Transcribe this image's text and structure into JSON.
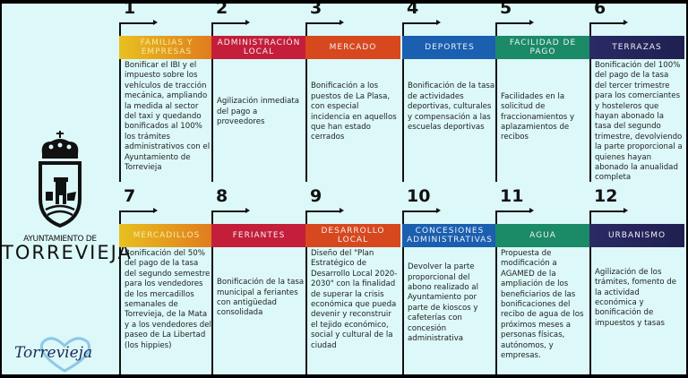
{
  "logo": {
    "subtitle": "AYUNTAMIENTO DE",
    "title": "TORREVIEJA"
  },
  "brand": {
    "text": "Torrevieja"
  },
  "items": [
    {
      "number": "1",
      "title": "FAMILIAS Y EMPRESAS",
      "color": "#e0a020",
      "text": "Bonificar el IBI y el impuesto sobre los vehículos de tracción mecánica, ampliando la medida al sector del taxi y quedando bonificados al 100% los trámites administrativos con el Ayuntamiento de Torrevieja"
    },
    {
      "number": "2",
      "title": "ADMINISTRACIÓN LOCAL",
      "color": "#c41e3a",
      "text": "Agilización inmediata del pago a proveedores"
    },
    {
      "number": "3",
      "title": "MERCADO",
      "color": "#d8481e",
      "text": "Bonificación a los puestos de La Plasa, con especial incidencia en aquellos que han estado cerrados"
    },
    {
      "number": "4",
      "title": "DEPORTES",
      "color": "#1a5fb0",
      "text": "Bonificación de la tasa de actividades deportivas, culturales y compensación a las escuelas deportivas"
    },
    {
      "number": "5",
      "title": "FACILIDAD DE PAGO",
      "color": "#1b8a66",
      "text": "Facilidades en la solicitud de fraccionamientos y aplazamientos de recibos"
    },
    {
      "number": "6",
      "title": "TERRAZAS",
      "color": "#2b2a66",
      "text": "Bonificación del 100% del pago de la tasa del tercer trimestre para los comerciantes y hosteleros que hayan abonado la tasa del segundo trimestre, devolviendo la parte proporcional a quienes hayan abonado la anualidad completa"
    },
    {
      "number": "7",
      "title": "MERCADILLOS",
      "color": "#e0a020",
      "text": "Bonificación del 50% del pago de la tasa del segundo semestre para los vendedores de los mercadillos semanales de Torrevieja, de la Mata y a los vendedores del paseo de La Libertad (los hippies)"
    },
    {
      "number": "8",
      "title": "FERIANTES",
      "color": "#c41e3a",
      "text": "Bonificación de la tasa municipal a feriantes con antigüedad consolidada"
    },
    {
      "number": "9",
      "title": "DESARROLLO LOCAL",
      "color": "#d8481e",
      "text": "Diseño del \"Plan Estratégico de Desarrollo Local 2020-2030\" con la finalidad de superar la crisis económica que pueda devenir y reconstruir el tejido económico, social y cultural de la ciudad"
    },
    {
      "number": "10",
      "title": "CONCESIONES ADMINISTRATIVAS",
      "color": "#1a5fb0",
      "text": "Devolver la parte proporcional del abono realizado al Ayuntamiento por parte de kioscos y cafeterías con concesión administrativa"
    },
    {
      "number": "11",
      "title": "AGUA",
      "color": "#1b8a66",
      "text": "Propuesta de modificación a AGAMED de la ampliación de los beneficiarios de las bonificaciones del recibo de agua de los próximos meses a personas físicas, autónomos, y empresas."
    },
    {
      "number": "12",
      "title": "URBANISMO",
      "color": "#2b2a66",
      "text": "Agilización de los trámites, fomento de la actividad económica y bonificación de impuestos y tasas"
    }
  ]
}
